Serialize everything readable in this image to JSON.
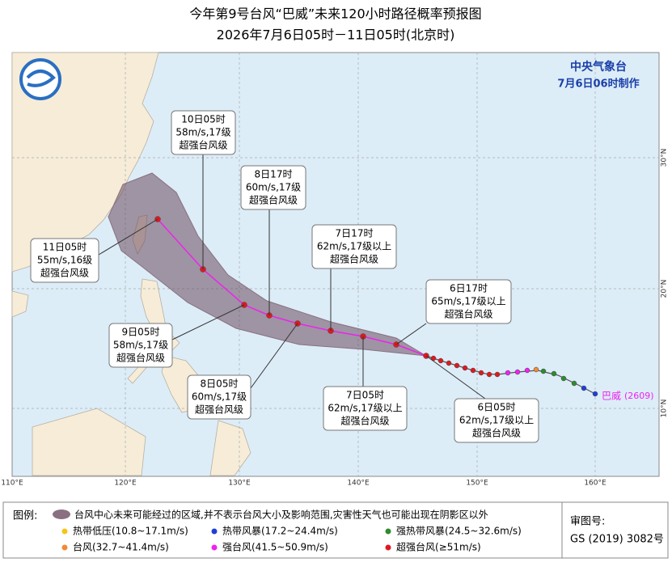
{
  "header": {
    "title": "今年第9号台风“巴威”未来120小时路径概率预报图",
    "subtitle": "2026年7月6日05时－11日05时(北京时)"
  },
  "agency": {
    "name": "中央气象台",
    "made": "7月6日06时制作"
  },
  "forecasts": [
    {
      "time": "6日05时",
      "intensity": "62m/s,17级以上",
      "category": "超强台风级"
    },
    {
      "time": "6日17时",
      "intensity": "65m/s,17级以上",
      "category": "超强台风级"
    },
    {
      "time": "7日05时",
      "intensity": "62m/s,17级以上",
      "category": "超强台风级"
    },
    {
      "time": "7日17时",
      "intensity": "62m/s,17级以上",
      "category": "超强台风级"
    },
    {
      "time": "8日05时",
      "intensity": "60m/s,17级",
      "category": "超强台风级"
    },
    {
      "time": "8日17时",
      "intensity": "60m/s,17级",
      "category": "超强台风级"
    },
    {
      "time": "9日05时",
      "intensity": "58m/s,17级",
      "category": "超强台风级"
    },
    {
      "time": "10日05时",
      "intensity": "58m/s,17级",
      "category": "超强台风级"
    },
    {
      "time": "11日05时",
      "intensity": "55m/s,16级",
      "category": "超强台风级"
    }
  ],
  "typhoon": {
    "name": "巴威",
    "code": "(2609)"
  },
  "axes": {
    "lon": [
      "110°E",
      "120°E",
      "130°E",
      "140°E",
      "150°E",
      "160°E"
    ],
    "lat": [
      "10°N",
      "20°N",
      "30°N"
    ]
  },
  "legend": {
    "title": "图例:",
    "area": "台风中心未来可能经过的区域,并不表示台风大小及影响范围,灾害性天气也可能出现在阴影区以外",
    "items": [
      {
        "label": "热带低压(10.8~17.1m/s)",
        "color": "#f5c518"
      },
      {
        "label": "热带风暴(17.2~24.4m/s)",
        "color": "#1f3fd6"
      },
      {
        "label": "强热带风暴(24.5~32.6m/s)",
        "color": "#2e8b2e"
      },
      {
        "label": "台风(32.7~41.4m/s)",
        "color": "#f08a3a"
      },
      {
        "label": "强台风(41.5~50.9m/s)",
        "color": "#ee22ee"
      },
      {
        "label": "超强台风(≥51m/s)",
        "color": "#e0181e"
      }
    ]
  },
  "approval": {
    "label": "审图号:",
    "number": "GS (2019) 3082号"
  }
}
